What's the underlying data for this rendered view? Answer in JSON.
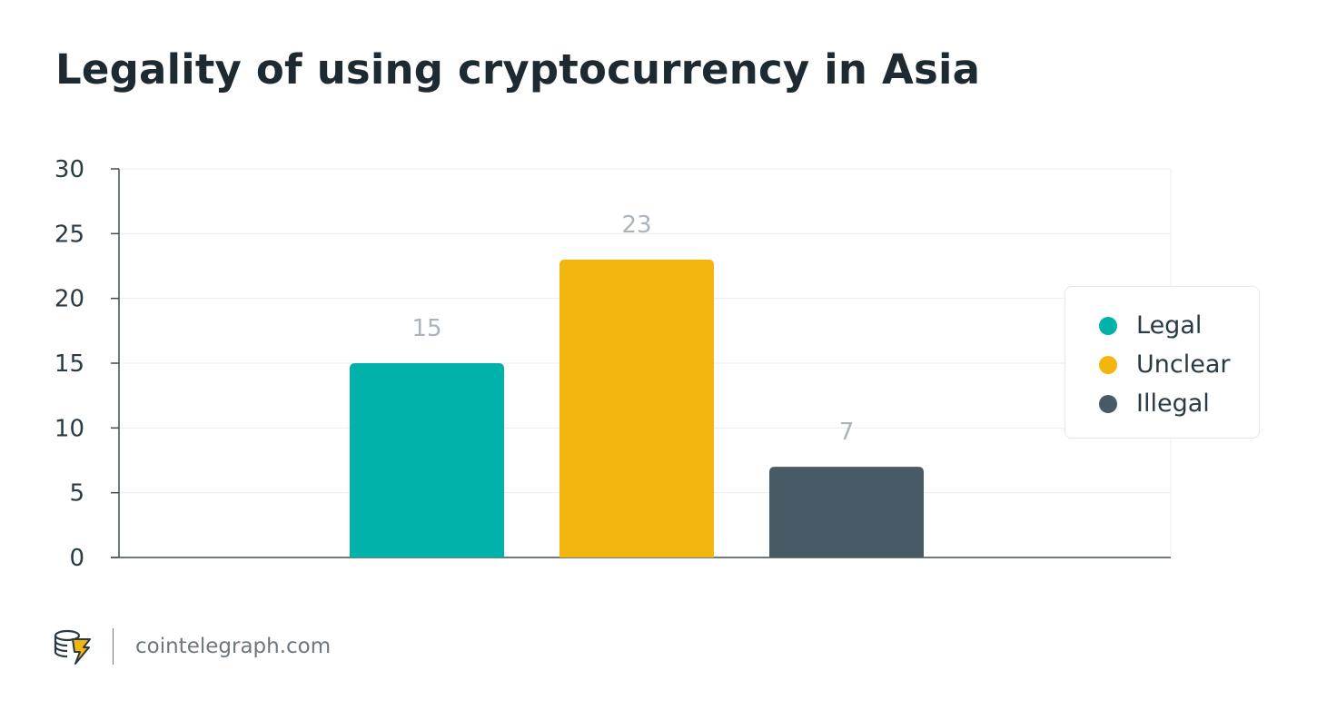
{
  "title": "Legality of using cryptocurrency in Asia",
  "colors": {
    "legal": "#00b2a9",
    "unclear": "#f2b60f",
    "illegal": "#475a66",
    "axis": "#3e4c55",
    "grid": "#ececec",
    "value_label": "#aab4ba"
  },
  "chart_data": {
    "type": "bar",
    "title": "Legality of using cryptocurrency in Asia",
    "xlabel": "",
    "ylabel": "",
    "ylim": [
      0,
      30
    ],
    "yticks": [
      0,
      5,
      10,
      15,
      20,
      25,
      30
    ],
    "grid": true,
    "legend_position": "right",
    "series": [
      {
        "name": "Legal",
        "value": 15,
        "label": "15",
        "color": "#00b2a9"
      },
      {
        "name": "Unclear",
        "value": 23,
        "label": "23",
        "color": "#f2b60f"
      },
      {
        "name": "Illegal",
        "value": 7,
        "label": "7",
        "color": "#475a66"
      }
    ]
  },
  "footer": {
    "site": "cointelegraph.com",
    "logo_icon": "cointelegraph-logo-icon"
  }
}
